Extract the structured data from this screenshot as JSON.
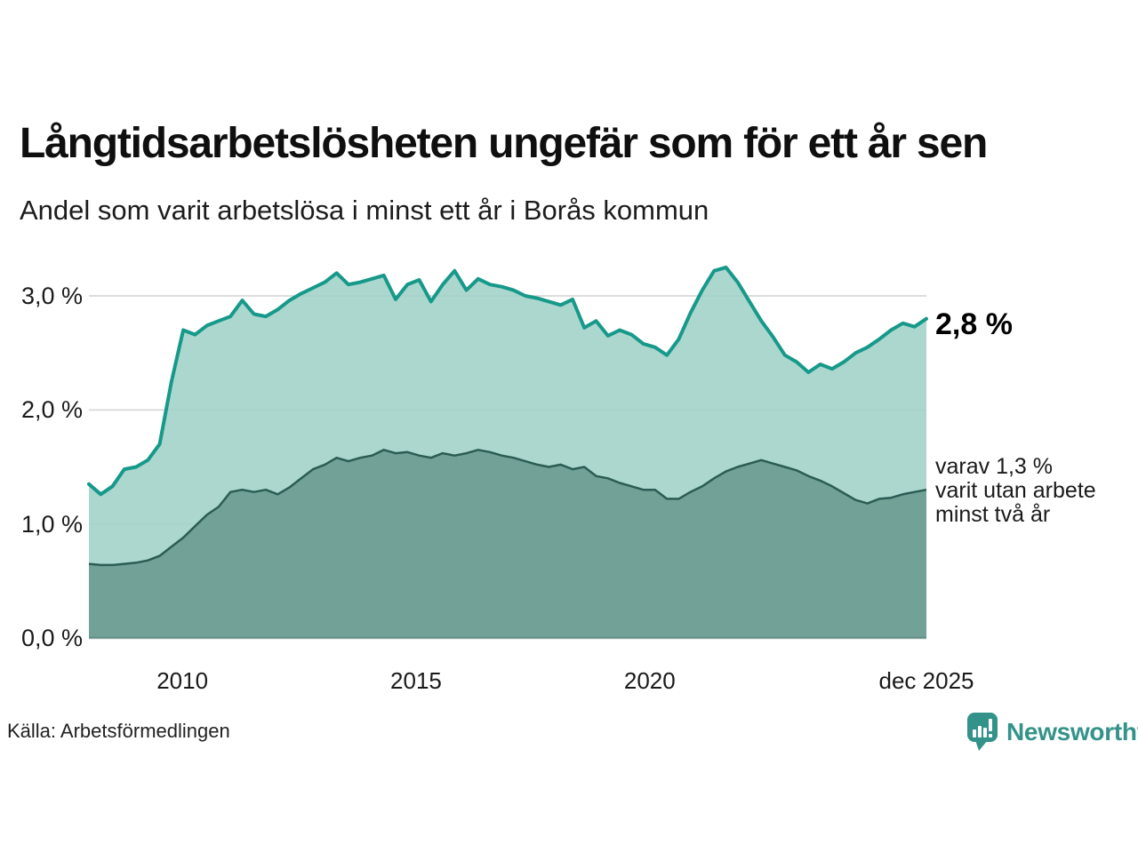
{
  "title": "Långtidsarbetslösheten ungefär som för ett år sen",
  "subtitle": "Andel som varit arbetslösa i minst ett år i Borås kommun",
  "annotations": {
    "latest_total": "2,8 %",
    "latest_breakdown": [
      "varav 1,3 %",
      "varit utan arbete",
      "minst två år"
    ]
  },
  "footer": {
    "source": "Källa: Arbetsförmedlingen",
    "brand": "Newsworthy",
    "brand_color": "#33938a"
  },
  "chart_data": {
    "type": "area",
    "title": "Långtidsarbetslösheten ungefär som för ett år sen",
    "subtitle": "Andel som varit arbetslösa i minst ett år i Borås kommun",
    "unit": "percent",
    "frequency": "quarterly",
    "period_start": "2008 Q1",
    "period_end": "dec 2025",
    "x_range": [
      2008.0,
      2025.92
    ],
    "x_ticks": [
      {
        "label": "2010",
        "year": 2010
      },
      {
        "label": "2015",
        "year": 2015
      },
      {
        "label": "2020",
        "year": 2020
      },
      {
        "label": "dec 2025",
        "year": 2025.92
      }
    ],
    "y_ticks": [
      {
        "label": "0,0 %",
        "value": 0
      },
      {
        "label": "1,0 %",
        "value": 1
      },
      {
        "label": "2,0 %",
        "value": 2
      },
      {
        "label": "3,0 %",
        "value": 3
      }
    ],
    "ylim": [
      0,
      3.35
    ],
    "grid": true,
    "gridline_color": "#dcdcdc",
    "series": [
      {
        "name": "Arbetslösa minst ett år",
        "latest_value_label": "2,8 %",
        "line_color": "#17998a",
        "fill_color": "#9fd1c8",
        "values": [
          1.35,
          1.26,
          1.33,
          1.48,
          1.5,
          1.56,
          1.7,
          2.25,
          2.7,
          2.66,
          2.74,
          2.78,
          2.82,
          2.96,
          2.84,
          2.82,
          2.88,
          2.96,
          3.02,
          3.07,
          3.12,
          3.2,
          3.1,
          3.12,
          3.15,
          3.18,
          2.97,
          3.1,
          3.14,
          2.95,
          3.1,
          3.22,
          3.05,
          3.15,
          3.1,
          3.08,
          3.05,
          3.0,
          2.98,
          2.95,
          2.92,
          2.97,
          2.72,
          2.78,
          2.65,
          2.7,
          2.66,
          2.58,
          2.55,
          2.48,
          2.62,
          2.85,
          3.05,
          3.22,
          3.25,
          3.12,
          2.95,
          2.78,
          2.64,
          2.48,
          2.42,
          2.33,
          2.4,
          2.36,
          2.42,
          2.5,
          2.55,
          2.62,
          2.7,
          2.76,
          2.73,
          2.8
        ]
      },
      {
        "name": "varav arbetslösa minst två år",
        "latest_value_label": "1,3 %",
        "line_color": "#2b5d55",
        "fill_color": "#6c9d93",
        "values": [
          0.65,
          0.64,
          0.64,
          0.65,
          0.66,
          0.68,
          0.72,
          0.8,
          0.88,
          0.98,
          1.08,
          1.15,
          1.28,
          1.3,
          1.28,
          1.3,
          1.26,
          1.32,
          1.4,
          1.48,
          1.52,
          1.58,
          1.55,
          1.58,
          1.6,
          1.65,
          1.62,
          1.63,
          1.6,
          1.58,
          1.62,
          1.6,
          1.62,
          1.65,
          1.63,
          1.6,
          1.58,
          1.55,
          1.52,
          1.5,
          1.52,
          1.48,
          1.5,
          1.42,
          1.4,
          1.36,
          1.33,
          1.3,
          1.3,
          1.22,
          1.22,
          1.28,
          1.33,
          1.4,
          1.46,
          1.5,
          1.53,
          1.56,
          1.53,
          1.5,
          1.47,
          1.42,
          1.38,
          1.33,
          1.27,
          1.21,
          1.18,
          1.22,
          1.23,
          1.26,
          1.28,
          1.3
        ]
      }
    ]
  }
}
